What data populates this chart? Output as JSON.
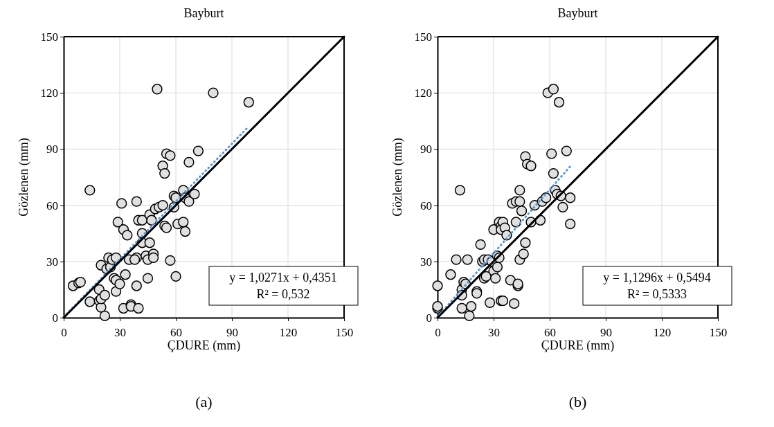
{
  "chart_data": [
    {
      "type": "scatter",
      "title": "Bayburt",
      "xlabel": "ÇDURE (mm)",
      "ylabel": "Gözlenen (mm)",
      "xlim": [
        0,
        150
      ],
      "ylim": [
        0,
        150
      ],
      "xticks": [
        0,
        30,
        60,
        90,
        120,
        150
      ],
      "yticks": [
        0,
        30,
        60,
        90,
        120,
        150
      ],
      "grid": true,
      "annotations": [
        "y = 1,0271x + 0,4351",
        "R² = 0,532",
        "(a)"
      ],
      "series": [
        {
          "type": "scatter",
          "marker": "circle",
          "color": "#e0e0e0",
          "x": [
            5,
            8,
            9,
            14,
            19,
            19,
            20,
            20,
            22,
            22,
            20,
            23,
            24,
            25,
            26,
            27,
            28,
            28,
            28,
            29,
            30,
            31,
            32,
            32,
            33,
            34,
            35,
            36,
            36,
            39,
            39,
            39,
            40,
            40,
            42,
            42,
            42,
            44,
            45,
            45,
            46,
            46,
            47,
            48,
            48,
            49,
            50,
            51,
            53,
            53,
            54,
            54,
            55,
            55,
            57,
            57,
            59,
            59,
            60,
            60,
            61,
            64,
            64,
            65,
            65,
            67,
            67,
            70,
            72,
            80,
            99,
            14,
            38
          ],
          "values": [
            17,
            18.5,
            19,
            8.5,
            15,
            9,
            5.5,
            10,
            1,
            12,
            28,
            26,
            32,
            27,
            31,
            21,
            20,
            32,
            14,
            51,
            18,
            61,
            47,
            5,
            23,
            44,
            31,
            7,
            6,
            62,
            32,
            17,
            52,
            5,
            45,
            40,
            52,
            33,
            31,
            21,
            40,
            55,
            52,
            34,
            32,
            58,
            122,
            59,
            60,
            81,
            77,
            49,
            87.5,
            48,
            86.5,
            30.5,
            59,
            65,
            64,
            22,
            50,
            68,
            51,
            46,
            64,
            62,
            83,
            66,
            89,
            120,
            115,
            68,
            31
          ]
        },
        {
          "type": "line",
          "color": "#5b9bd5",
          "line_style": "dotted",
          "x": [
            0,
            99
          ],
          "values": [
            0.4,
            102.1
          ]
        },
        {
          "type": "line",
          "color": "#000000",
          "line_style": "solid",
          "x": [
            0,
            150
          ],
          "values": [
            0,
            150
          ]
        }
      ]
    },
    {
      "type": "scatter",
      "title": "Bayburt",
      "xlabel": "ÇDURE (mm)",
      "ylabel": "Gözlenen (mm)",
      "xlim": [
        0,
        150
      ],
      "ylim": [
        0,
        150
      ],
      "xticks": [
        0,
        30,
        60,
        90,
        120,
        150
      ],
      "yticks": [
        0,
        30,
        60,
        90,
        120,
        150
      ],
      "grid": true,
      "annotations": [
        "y = 1,1296x + 0,5494",
        "R² = 0,5333",
        "(b)"
      ],
      "series": [
        {
          "type": "scatter",
          "marker": "circle",
          "color": "#e0e0e0",
          "x": [
            0,
            0,
            0,
            7,
            10,
            12,
            13,
            13,
            13,
            14,
            15,
            16,
            17,
            18,
            21,
            21,
            23,
            24,
            25,
            25,
            26,
            27,
            28,
            29,
            30,
            30,
            31,
            32,
            32,
            33,
            33,
            34,
            34,
            34,
            35,
            35,
            36,
            37,
            39,
            40,
            41,
            42,
            42,
            43,
            43,
            44,
            44,
            44,
            45,
            46,
            47,
            47,
            48,
            50,
            50,
            52,
            55,
            56,
            58,
            59,
            61,
            62,
            62,
            63,
            64,
            65,
            66,
            67,
            69,
            71,
            71
          ],
          "values": [
            17,
            5,
            6,
            23,
            31,
            68,
            5,
            15,
            12,
            19,
            18,
            31,
            1,
            6,
            14,
            13,
            39,
            30,
            21,
            31,
            22,
            31,
            8,
            30,
            47,
            25,
            21,
            33,
            27,
            51,
            32,
            49,
            47,
            9,
            51,
            9,
            48,
            44,
            20,
            61,
            7.5,
            62,
            51,
            17,
            18,
            68,
            62,
            31,
            57,
            34,
            40,
            86,
            82,
            81,
            51,
            60,
            52,
            62,
            64,
            120,
            87.5,
            122,
            77,
            68,
            66,
            115,
            65,
            59,
            89,
            50,
            64
          ]
        },
        {
          "type": "line",
          "color": "#5b9bd5",
          "line_style": "dotted",
          "x": [
            0,
            71
          ],
          "values": [
            0.5,
            80.8
          ]
        },
        {
          "type": "line",
          "color": "#000000",
          "line_style": "solid",
          "x": [
            0,
            150
          ],
          "values": [
            0,
            150
          ]
        }
      ]
    }
  ]
}
